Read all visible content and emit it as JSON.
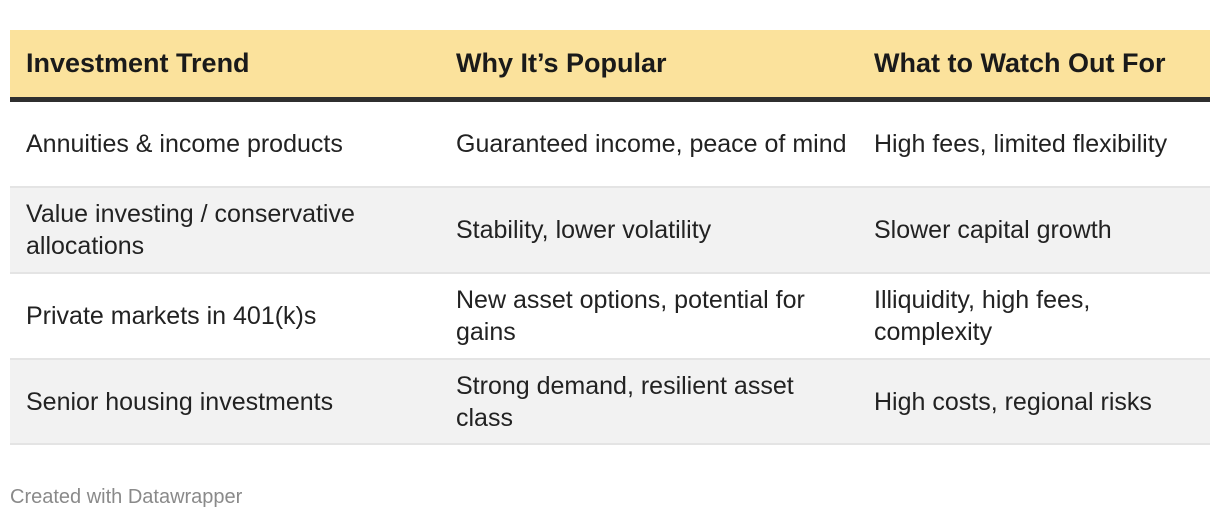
{
  "chart_data": {
    "type": "table",
    "columns": [
      "Investment Trend",
      "Why It’s Popular",
      "What to Watch Out For"
    ],
    "rows": [
      [
        "Annuities & income products",
        "Guaranteed income, peace of mind",
        "High fees, limited flexibility"
      ],
      [
        "Value investing / conservative allocations",
        "Stability, lower volatility",
        "Slower capital growth"
      ],
      [
        "Private markets in 401(k)s",
        "New asset options, potential for gains",
        "Illiquidity, high fees, complexity"
      ],
      [
        "Senior housing investments",
        "Strong demand, resilient asset class",
        "High costs, regional risks"
      ]
    ],
    "header_color": "#fbe29c",
    "row_alt_color": "#f2f2f2"
  },
  "footer": {
    "credit": "Created with Datawrapper"
  }
}
